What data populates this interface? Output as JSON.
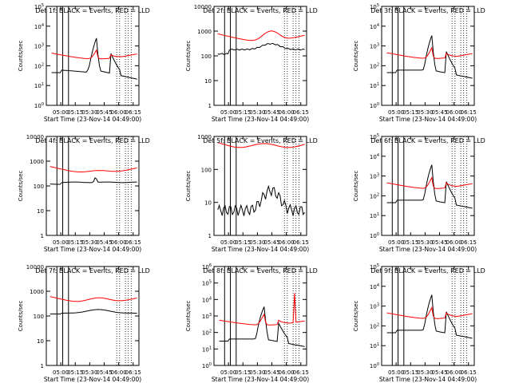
{
  "colors": {
    "events": "#000000",
    "lld": "#ff0000",
    "axis": "#000000"
  },
  "chart_data": [
    {
      "type": "line",
      "title": "Det 1f: BLACK = Events, RED = LLD",
      "xlabel": "Start Time (23-Nov-14 04:49:00)",
      "ylabel": "Counts/sec",
      "x_ticks": [
        "05:00",
        "05:15",
        "05:30",
        "05:45",
        "06:00",
        "06:15"
      ],
      "y_ticks": [
        "10^0",
        "10^1",
        "10^2",
        "10^3",
        "10^4",
        "10^5"
      ],
      "ylog": true,
      "ylim": [
        1,
        100000
      ],
      "x": [
        4,
        5,
        6,
        7,
        8,
        9,
        10,
        11,
        12,
        13,
        14,
        15,
        16,
        17,
        18,
        19,
        20,
        21,
        22,
        23,
        24,
        25,
        26,
        27,
        28,
        29,
        30,
        31,
        32,
        33,
        34,
        35,
        36,
        37,
        38,
        39,
        40,
        41,
        42,
        43,
        44,
        45,
        46,
        47,
        48,
        49,
        50,
        51,
        52,
        53,
        54,
        55,
        56,
        57,
        58,
        59,
        60,
        61,
        62,
        63,
        64,
        65,
        66,
        67,
        68,
        69,
        70,
        71,
        72,
        73,
        74,
        75,
        76,
        77,
        78,
        79,
        80,
        81,
        82,
        83,
        84,
        85,
        86,
        87,
        88,
        89,
        90,
        91,
        92
      ],
      "series": [
        {
          "name": "Events",
          "color": "#000000",
          "values": [
            null,
            null,
            null,
            null,
            null,
            null,
            null,
            null,
            null,
            null,
            null,
            null,
            null,
            null,
            null,
            null,
            null,
            null,
            null,
            null,
            null,
            null,
            null,
            null,
            null,
            null,
            null,
            null,
            null,
            null,
            null,
            null,
            null,
            null,
            null,
            null,
            null,
            null,
            null,
            null,
            null,
            null,
            null,
            null,
            null,
            null,
            null,
            null,
            null,
            null,
            null,
            null,
            null,
            null,
            null,
            null,
            null,
            null,
            null,
            null,
            null,
            null,
            null,
            null,
            null,
            null,
            null,
            null,
            null,
            null,
            null,
            null,
            null,
            null,
            null,
            null,
            null,
            null,
            null,
            null,
            null,
            null,
            null,
            null,
            null,
            null,
            null,
            null,
            null
          ]
        }
      ]
    }
  ]
}
